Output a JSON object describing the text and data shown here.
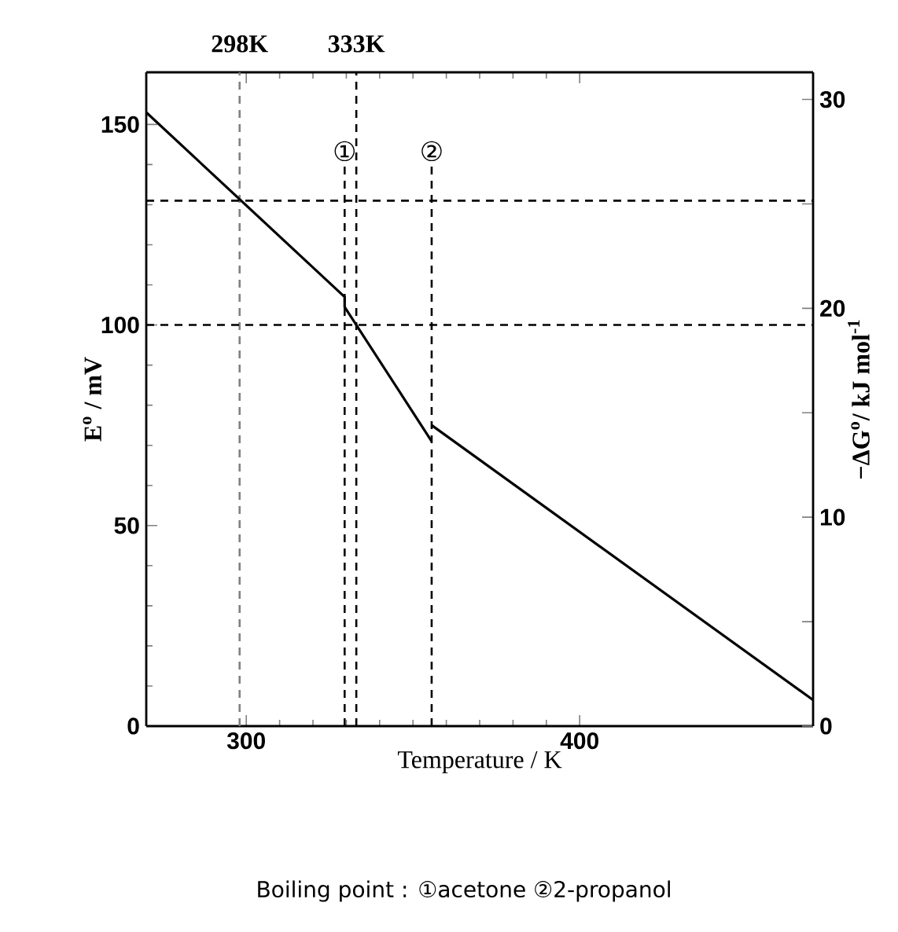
{
  "chart_data": {
    "type": "line",
    "xlabel": "Temperature / K",
    "ylabel": "E$^{o}$ / mV",
    "y2label": "−ΔG$^{o}$/ kJ mol$^{-1}$",
    "series": [
      {
        "color": "#000000",
        "x": [
          270,
          329.5,
          329.5,
          355.6
        ],
        "values": [
          153,
          107,
          104.5,
          71
        ]
      },
      {
        "color": "#000000",
        "x": [
          355.6,
          470
        ],
        "values": [
          75,
          6.5
        ]
      }
    ],
    "xlim": [
      270,
      470
    ],
    "xticks": [
      300,
      400
    ],
    "ylim": [
      0,
      163
    ],
    "yticks": [
      0,
      50,
      100,
      150
    ],
    "y2lim": [
      0,
      31.3
    ],
    "y2ticks": [
      0,
      10,
      20,
      30
    ],
    "ref_lines": [
      {
        "axis": "x",
        "value": 298,
        "label": "298K",
        "color": "#808080",
        "line_style": "dashed"
      },
      {
        "axis": "x",
        "value": 333,
        "label": "333K",
        "color": "#000000",
        "line_style": "dashed"
      },
      {
        "axis": "x",
        "value": 329.5,
        "label": "①",
        "color": "#000000",
        "line_style": "dashed"
      },
      {
        "axis": "x",
        "value": 355.6,
        "label": "②",
        "color": "#000000",
        "line_style": "dashed"
      },
      {
        "axis": "y",
        "value": 131,
        "color": "#000000",
        "line_style": "dashed"
      },
      {
        "axis": "y",
        "value": 100,
        "color": "#000000",
        "line_style": "dashed"
      }
    ],
    "annotations": [
      "Boiling point : ①acetone  ②2-propanol"
    ],
    "marker": "none",
    "line_style": "solid"
  }
}
